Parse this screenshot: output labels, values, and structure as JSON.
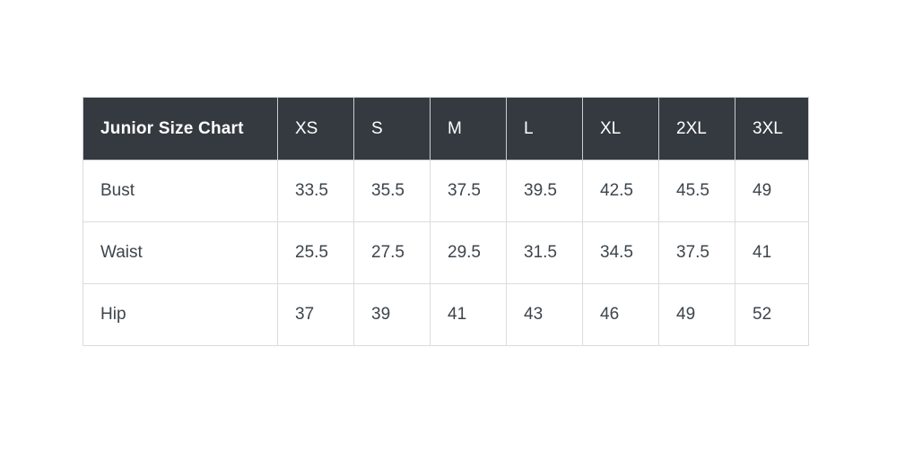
{
  "colors": {
    "header_bg": "#343a40",
    "header_text": "#ffffff",
    "body_text": "#3d444b",
    "grid_border": "#d9dcdf",
    "page_bg": "#ffffff"
  },
  "size_chart": {
    "title": "Junior Size Chart",
    "columns": [
      "XS",
      "S",
      "M",
      "L",
      "XL",
      "2XL",
      "3XL"
    ],
    "rows": [
      {
        "label": "Bust",
        "values": [
          "33.5",
          "35.5",
          "37.5",
          "39.5",
          "42.5",
          "45.5",
          "49"
        ]
      },
      {
        "label": "Waist",
        "values": [
          "25.5",
          "27.5",
          "29.5",
          "31.5",
          "34.5",
          "37.5",
          "41"
        ]
      },
      {
        "label": "Hip",
        "values": [
          "37",
          "39",
          "41",
          "43",
          "46",
          "49",
          "52"
        ]
      }
    ]
  },
  "chart_data": {
    "type": "table",
    "title": "Junior Size Chart",
    "columns": [
      "XS",
      "S",
      "M",
      "L",
      "XL",
      "2XL",
      "3XL"
    ],
    "row_labels": [
      "Bust",
      "Waist",
      "Hip"
    ],
    "values": [
      [
        33.5,
        35.5,
        37.5,
        39.5,
        42.5,
        45.5,
        49
      ],
      [
        25.5,
        27.5,
        29.5,
        31.5,
        34.5,
        37.5,
        41
      ],
      [
        37,
        39,
        41,
        43,
        46,
        49,
        52
      ]
    ]
  }
}
